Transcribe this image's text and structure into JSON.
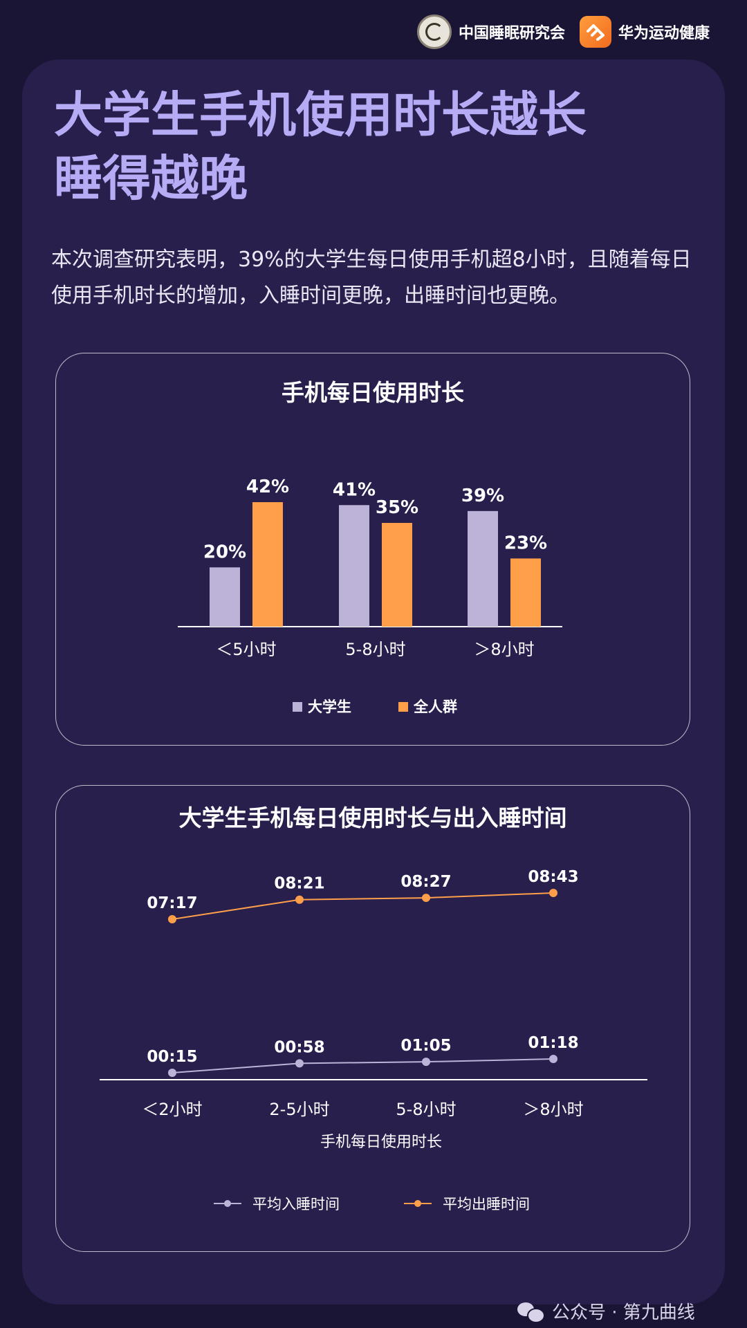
{
  "header": {
    "org1": "中国睡眠研究会",
    "org2": "华为运动健康"
  },
  "title_line1": "大学生手机使用时长越长",
  "title_line2": "睡得越晚",
  "description": "本次调查研究表明，39%的大学生每日使用手机超8小时，且随着每日使用手机时长的增加，入睡时间更晚，出睡时间也更晚。",
  "colors": {
    "student": "#bdb3d8",
    "all": "#ff9f4a",
    "title": "#b6acf5"
  },
  "chart_data": [
    {
      "type": "bar",
      "title": "手机每日使用时长",
      "categories": [
        "＜5小时",
        "5-8小时",
        "＞8小时"
      ],
      "series": [
        {
          "name": "大学生",
          "values": [
            20,
            41,
            39
          ],
          "labels": [
            "20%",
            "41%",
            "39%"
          ]
        },
        {
          "name": "全人群",
          "values": [
            42,
            35,
            23
          ],
          "labels": [
            "42%",
            "35%",
            "23%"
          ]
        }
      ],
      "ylim": [
        0,
        50
      ],
      "legend": "bottom"
    },
    {
      "type": "line",
      "title": "大学生手机每日使用时长与出入睡时间",
      "categories": [
        "＜2小时",
        "2-5小时",
        "5-8小时",
        "＞8小时"
      ],
      "xlabel": "手机每日使用时长",
      "series": [
        {
          "name": "平均入睡时间",
          "values": [
            "00:15",
            "00:58",
            "01:05",
            "01:18"
          ]
        },
        {
          "name": "平均出睡时间",
          "values": [
            "07:17",
            "08:21",
            "08:27",
            "08:43"
          ]
        }
      ],
      "legend": "bottom"
    }
  ],
  "watermark": "公众号 · 第九曲线"
}
